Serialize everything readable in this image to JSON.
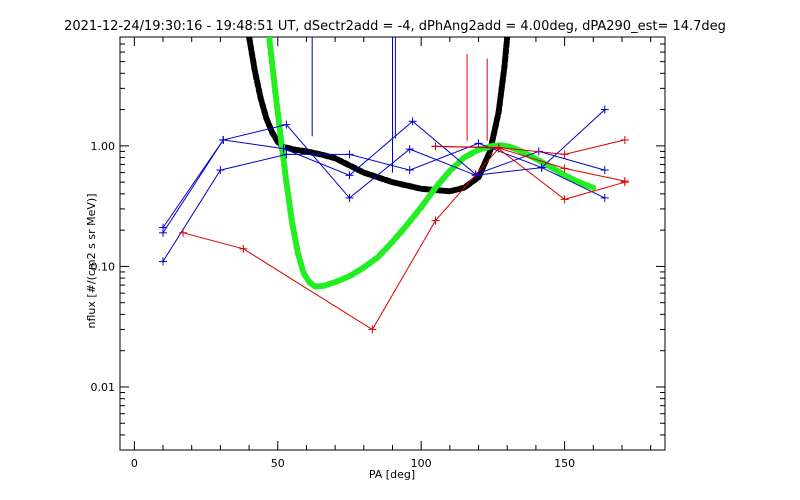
{
  "chart_data": {
    "type": "line",
    "title": "2021-12-24/19:30:16 - 19:48:51 UT, dSectr2add = -4, dPhAng2add = 4.00deg, dPA290_est=  14.7deg",
    "xlabel": "PA [deg]",
    "ylabel": "nflux [#/(cm2 s sr MeV)]",
    "xlim": [
      -5,
      185
    ],
    "ylim": [
      0.003,
      8
    ],
    "yscale": "log",
    "grid": false,
    "x_ticks": [
      0,
      50,
      100,
      150
    ],
    "x_tick_labels": [
      "0",
      "50",
      "100",
      "150"
    ],
    "y_ticks": [
      0.01,
      0.1,
      1.0
    ],
    "y_tick_labels": [
      "0.01",
      "0.10",
      "1.00"
    ],
    "colors": {
      "blue": "#0000cc",
      "red": "#dd0000",
      "black": "#000000",
      "green": "#22ee22"
    },
    "series": [
      {
        "color": "blue",
        "marker": "plus",
        "x": [
          10,
          31,
          53,
          75,
          96,
          119,
          142,
          164
        ],
        "y": [
          0.21,
          1.12,
          1.5,
          0.37,
          0.94,
          0.57,
          0.66,
          0.37
        ]
      },
      {
        "color": "blue",
        "marker": "plus",
        "x": [
          10,
          31,
          52,
          75,
          97,
          119,
          141,
          164
        ],
        "y": [
          0.19,
          1.12,
          0.95,
          0.57,
          1.6,
          0.58,
          0.9,
          0.63
        ]
      },
      {
        "color": "blue",
        "marker": "plus",
        "x": [
          10,
          30,
          53,
          75,
          96,
          120,
          142,
          164
        ],
        "y": [
          0.11,
          0.63,
          0.85,
          0.85,
          0.63,
          1.05,
          0.66,
          2.0
        ]
      },
      {
        "color": "red",
        "marker": "plus",
        "x": [
          17,
          38,
          83,
          105,
          127,
          150,
          171
        ],
        "y": [
          0.19,
          0.14,
          0.03,
          0.24,
          0.95,
          0.36,
          0.5
        ]
      },
      {
        "color": "red",
        "marker": "plus",
        "x": [
          105,
          127,
          150,
          171
        ],
        "y": [
          0.99,
          0.97,
          0.85,
          1.12
        ]
      },
      {
        "color": "red",
        "marker": "plus",
        "x": [
          105,
          127,
          150,
          171
        ],
        "y": [
          0.99,
          0.96,
          0.65,
          0.51
        ]
      },
      {
        "color": "black",
        "style": "dashed-thick",
        "x": [
          40,
          42,
          44,
          46,
          48,
          50,
          52,
          56,
          60,
          65,
          70,
          80,
          90,
          100,
          110,
          115,
          120,
          124,
          127,
          129,
          130
        ],
        "y": [
          8,
          4.2,
          2.5,
          1.7,
          1.3,
          1.08,
          0.98,
          0.93,
          0.9,
          0.85,
          0.79,
          0.6,
          0.5,
          0.44,
          0.42,
          0.45,
          0.55,
          0.9,
          1.9,
          4.5,
          8
        ]
      },
      {
        "color": "green",
        "style": "dashed-thick",
        "x": [
          47,
          49,
          51,
          53,
          55,
          57,
          59,
          61,
          63,
          66,
          70,
          75,
          80,
          85,
          90,
          95,
          100,
          105,
          110,
          115,
          120,
          125,
          128,
          131,
          135,
          140,
          145,
          150,
          155,
          160
        ],
        "y": [
          8,
          3.0,
          1.2,
          0.5,
          0.23,
          0.13,
          0.088,
          0.074,
          0.068,
          0.069,
          0.074,
          0.083,
          0.098,
          0.12,
          0.16,
          0.22,
          0.31,
          0.45,
          0.62,
          0.8,
          0.93,
          1.0,
          1.01,
          0.98,
          0.9,
          0.78,
          0.67,
          0.57,
          0.5,
          0.45
        ]
      }
    ],
    "vertical_spikes": [
      {
        "color": "blue",
        "x": 62,
        "y_from": 1.2,
        "y_to": 8
      },
      {
        "color": "blue",
        "x": 90,
        "y_from": 0.6,
        "y_to": 8
      },
      {
        "color": "blue",
        "x": 91,
        "y_from": 1.15,
        "y_to": 8
      },
      {
        "color": "red",
        "x": 116,
        "y_from": 1.1,
        "y_to": 5.8
      },
      {
        "color": "red",
        "x": 123,
        "y_from": 1.1,
        "y_to": 5.3
      }
    ]
  }
}
